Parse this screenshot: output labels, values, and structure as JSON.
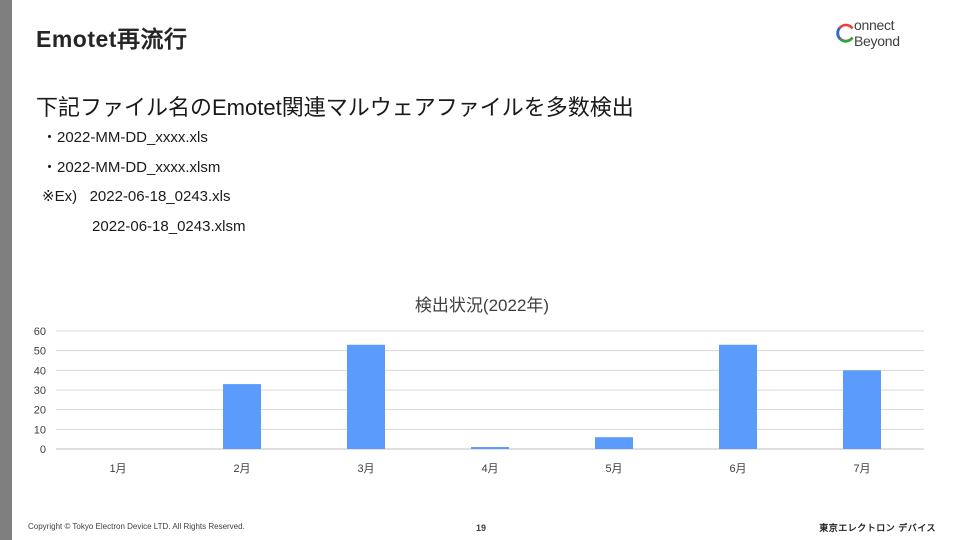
{
  "slide": {
    "title": "Emotet再流行",
    "logo_text": "onnect Beyond",
    "logo_icon": "c-ring-logo-icon",
    "heading": "下記ファイル名のEmotet関連マルウェアファイルを多数検出",
    "lines": [
      "・2022-MM-DD_xxxx.xls",
      "・2022-MM-DD_xxxx.xlsm",
      "※Ex)   2022-06-18_0243.xls",
      "            2022-06-18_0243.xlsm"
    ],
    "footer_copyright": "Copyright © Tokyo Electron Device LTD. All Rights Reserved.",
    "page_number": "19",
    "footer_brand": "東京エレクトロン デバイス"
  },
  "chart_data": {
    "type": "bar",
    "title": "検出状況(2022年)",
    "categories": [
      "1月",
      "2月",
      "3月",
      "4月",
      "5月",
      "6月",
      "7月"
    ],
    "values": [
      0,
      33,
      53,
      1,
      6,
      53,
      40
    ],
    "ylim": [
      0,
      60
    ],
    "yticks": [
      0,
      10,
      20,
      30,
      40,
      50,
      60
    ],
    "grid": true,
    "legend": "none",
    "bar_color": "#5b9bfb"
  }
}
